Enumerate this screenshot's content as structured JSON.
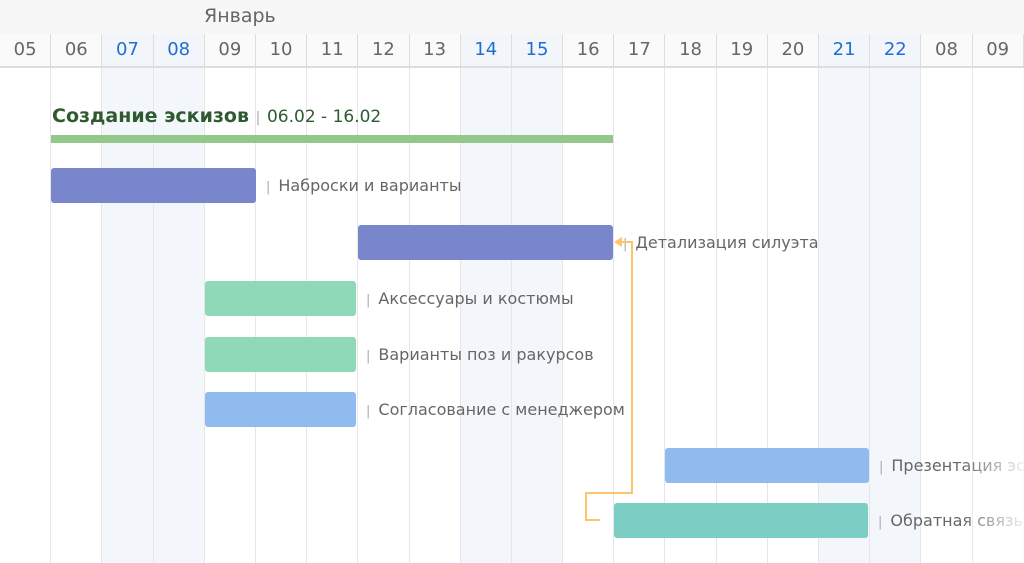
{
  "month": "Январь",
  "days": [
    {
      "d": "05"
    },
    {
      "d": "06"
    },
    {
      "d": "07",
      "we": true
    },
    {
      "d": "08",
      "we": true
    },
    {
      "d": "09"
    },
    {
      "d": "10"
    },
    {
      "d": "11"
    },
    {
      "d": "12"
    },
    {
      "d": "13"
    },
    {
      "d": "14",
      "we": true
    },
    {
      "d": "15",
      "we": true
    },
    {
      "d": "16"
    },
    {
      "d": "17"
    },
    {
      "d": "18"
    },
    {
      "d": "19"
    },
    {
      "d": "20"
    },
    {
      "d": "21",
      "we": true
    },
    {
      "d": "22",
      "we": true
    },
    {
      "d": "08"
    },
    {
      "d": "09"
    }
  ],
  "summary": {
    "title": "Создание эскизов",
    "dates": "06.02 - 16.02",
    "color": "#93c88a"
  },
  "tasks": [
    {
      "label": "Наброски и варианты",
      "color": "#7986cb"
    },
    {
      "label": "Детализация силуэта",
      "color": "#7986cb"
    },
    {
      "label": "Аксессуары и костюмы",
      "color": "#8fd8b8"
    },
    {
      "label": "Варианты поз и ракурсов",
      "color": "#8fd8b8"
    },
    {
      "label": "Согласование с менеджером",
      "color": "#8fbbee"
    },
    {
      "label": "Презентация эскизов",
      "color": "#8fbbee"
    },
    {
      "label": "Обратная связь",
      "color": "#7ccdc4"
    }
  ],
  "link_color": "#ffc46b"
}
